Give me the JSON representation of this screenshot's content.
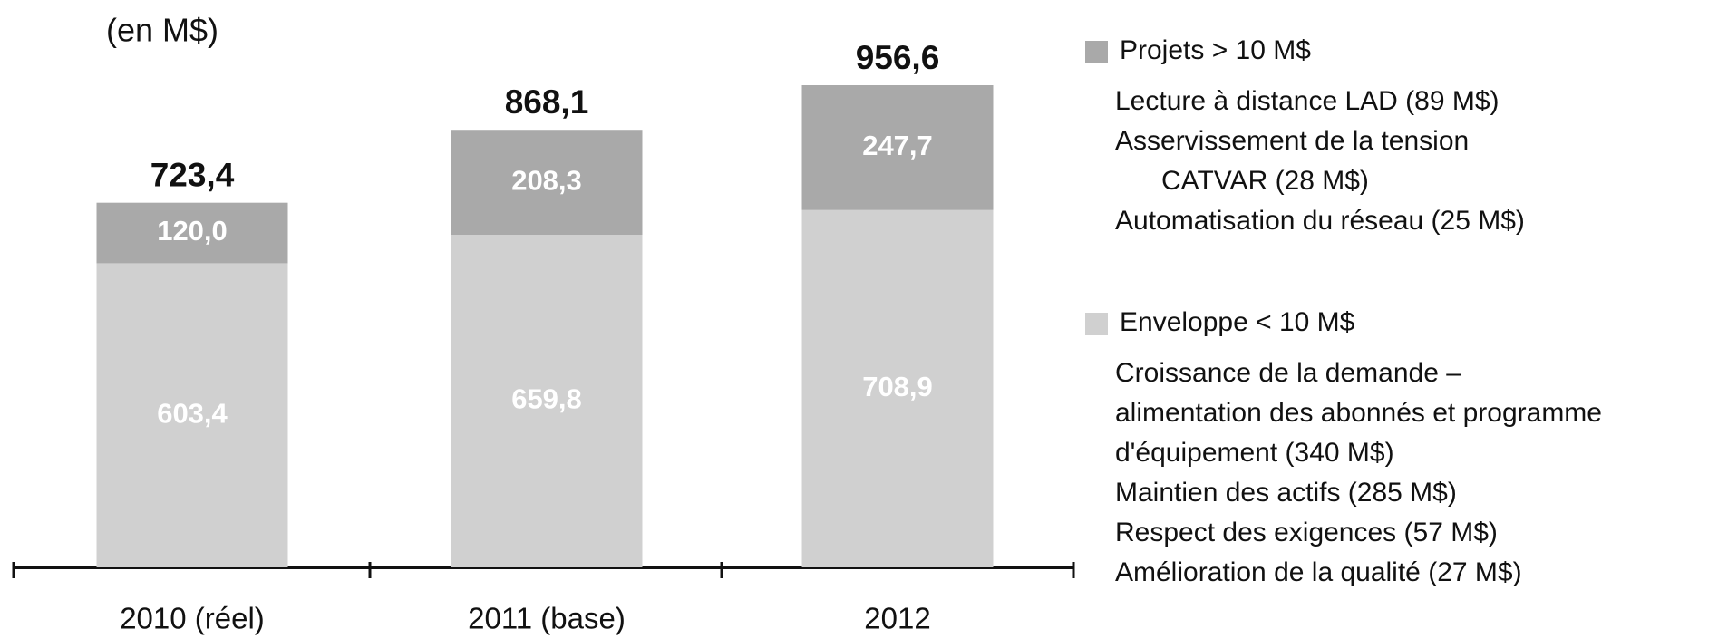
{
  "chart_data": {
    "type": "stacked_bar",
    "unit_label": "(en M$)",
    "categories": [
      "2010 (réel)",
      "2011 (base)",
      "2012"
    ],
    "series": [
      {
        "name": "Enveloppe < 10 M$",
        "color": "#d0d0d0",
        "values": [
          603.4,
          659.8,
          708.9
        ],
        "value_labels": [
          "603,4",
          "659,8",
          "708,9"
        ],
        "items": [
          [
            "Croissance de la demande –",
            "alimentation des abonnés et programme",
            "d'équipement (340 M$)"
          ],
          [
            "Maintien des actifs (285 M$)"
          ],
          [
            "Respect des exigences (57 M$)"
          ],
          [
            "Amélioration de la qualité (27 M$)"
          ]
        ]
      },
      {
        "name": "Projets > 10 M$",
        "color": "#a9a9a9",
        "values": [
          120.0,
          208.3,
          247.7
        ],
        "value_labels": [
          "120,0",
          "208,3",
          "247,7"
        ],
        "items": [
          [
            "Lecture à distance LAD (89 M$)"
          ],
          [
            "Asservissement de la tension",
            "CATVAR (28 M$)"
          ],
          [
            "Automatisation du réseau (25 M$)"
          ]
        ]
      }
    ],
    "totals": [
      723.4,
      868.1,
      956.6
    ],
    "total_labels": [
      "723,4",
      "868,1",
      "956,6"
    ]
  }
}
